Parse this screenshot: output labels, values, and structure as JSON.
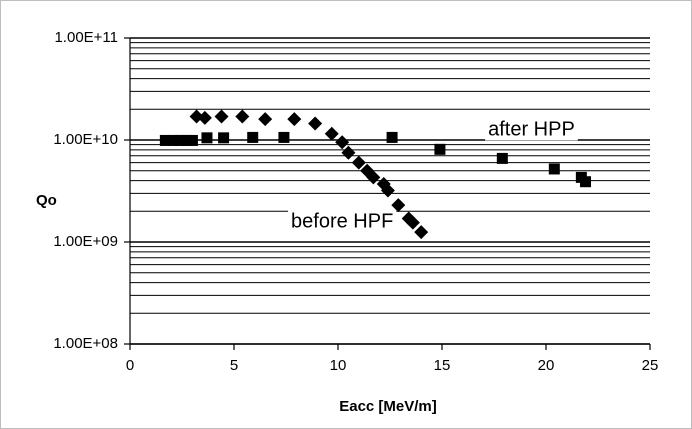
{
  "chart_data": {
    "type": "scatter",
    "title": "",
    "xlabel": "Eacc [MeV/m]",
    "ylabel": "Qo",
    "xlim": [
      0,
      25
    ],
    "ylim": [
      100000000,
      100000000000
    ],
    "yscale": "log",
    "grid": {
      "x": false,
      "y": "major-and-minor"
    },
    "legend": "none",
    "x_ticks": [
      "0",
      "5",
      "10",
      "15",
      "20",
      "25"
    ],
    "y_ticks": [
      "1.00E+08",
      "1.00E+09",
      "1.00E+10",
      "1.00E+11"
    ],
    "series": [
      {
        "marker": "diamond",
        "color": "#000000",
        "points": [
          [
            3.2,
            17000000000
          ],
          [
            3.6,
            16500000000
          ],
          [
            4.4,
            17000000000
          ],
          [
            5.4,
            17000000000
          ],
          [
            6.5,
            16000000000
          ],
          [
            7.9,
            16000000000
          ],
          [
            8.9,
            14500000000
          ],
          [
            9.7,
            11500000000
          ],
          [
            10.2,
            9500000000
          ],
          [
            10.5,
            7500000000
          ],
          [
            11.0,
            6000000000
          ],
          [
            11.4,
            5000000000
          ],
          [
            11.7,
            4300000000
          ],
          [
            12.2,
            3700000000
          ],
          [
            12.4,
            3200000000
          ],
          [
            12.9,
            2300000000
          ],
          [
            13.4,
            1700000000
          ],
          [
            13.6,
            1550000000
          ],
          [
            14.0,
            1250000000
          ]
        ]
      },
      {
        "marker": "square",
        "color": "#000000",
        "points": [
          [
            1.7,
            9900000000
          ],
          [
            2.1,
            9900000000
          ],
          [
            2.4,
            9900000000
          ],
          [
            2.7,
            9900000000
          ],
          [
            3.0,
            9900000000
          ],
          [
            3.7,
            10500000000
          ],
          [
            4.5,
            10500000000
          ],
          [
            5.9,
            10600000000
          ],
          [
            7.4,
            10600000000
          ],
          [
            12.6,
            10600000000
          ],
          [
            14.9,
            8100000000
          ],
          [
            17.9,
            6600000000
          ],
          [
            20.4,
            5200000000
          ],
          [
            21.7,
            4300000000
          ],
          [
            21.9,
            3900000000
          ]
        ]
      }
    ],
    "annotations": [
      {
        "text": "after HPP",
        "x": 19.3,
        "y": 12500000000
      },
      {
        "text": "before HPF",
        "x": 10.2,
        "y": 1570000000
      }
    ]
  }
}
